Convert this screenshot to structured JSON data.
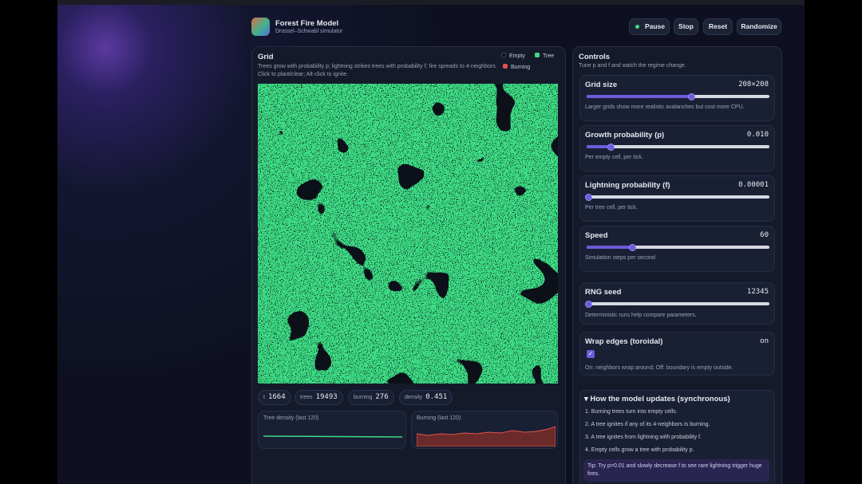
{
  "header": {
    "title": "Forest Fire Model",
    "subtitle": "Drossel–Schwabl simulator"
  },
  "buttons": [
    "Pause",
    "Stop",
    "Reset",
    "Randomize"
  ],
  "grid_panel": {
    "title": "Grid",
    "description": "Trees grow with probability p; lightning strikes trees with probability f; fire spreads to 4-neighbors. Click to plant/clear; Alt-click to ignite.",
    "legend": [
      "Empty",
      "Tree",
      "Burning"
    ],
    "stats": [
      {
        "label": "t",
        "value": 1664
      },
      {
        "label": "trees",
        "value": 19493
      },
      {
        "label": "burning",
        "value": 276
      },
      {
        "label": "density",
        "value": 0.451
      }
    ],
    "sparklines": [
      "Tree density (last 120)",
      "Burning (last 120)"
    ]
  },
  "controls": {
    "title": "Controls",
    "subtitle": "Tune p and f and watch the regime change.",
    "sliders": [
      {
        "name": "Grid size",
        "value": "208×208",
        "hint": "Larger grids show more realistic avalanches but cost more CPU."
      },
      {
        "name": "Growth probability (p)",
        "value": "0.010",
        "hint": "Per empty cell, per tick."
      },
      {
        "name": "Lightning probability (f)",
        "value": "0.00001",
        "hint": "Per tree cell, per tick."
      },
      {
        "name": "Speed",
        "value": 60,
        "hint": "Simulation steps per second."
      },
      {
        "name": "RNG seed",
        "value": 12345,
        "hint": "Deterministic runs help compare parameters."
      }
    ],
    "wrap": {
      "name": "Wrap edges (toroidal)",
      "value": "on",
      "hint": "On: neighbors wrap around; Off: boundary is empty outside."
    },
    "how": {
      "title": "How the model updates (synchronous)",
      "steps": [
        "1. Burning trees turn into empty cells.",
        "2. A tree ignites if any of its 4-neighbors is burning.",
        "3. A tree ignites from lightning with probability f.",
        "4. Empty cells grow a tree with probability p."
      ],
      "tip": "Tip: Try p=0.01 and slowly decrease f to see rare lightning trigger huge fires."
    }
  }
}
